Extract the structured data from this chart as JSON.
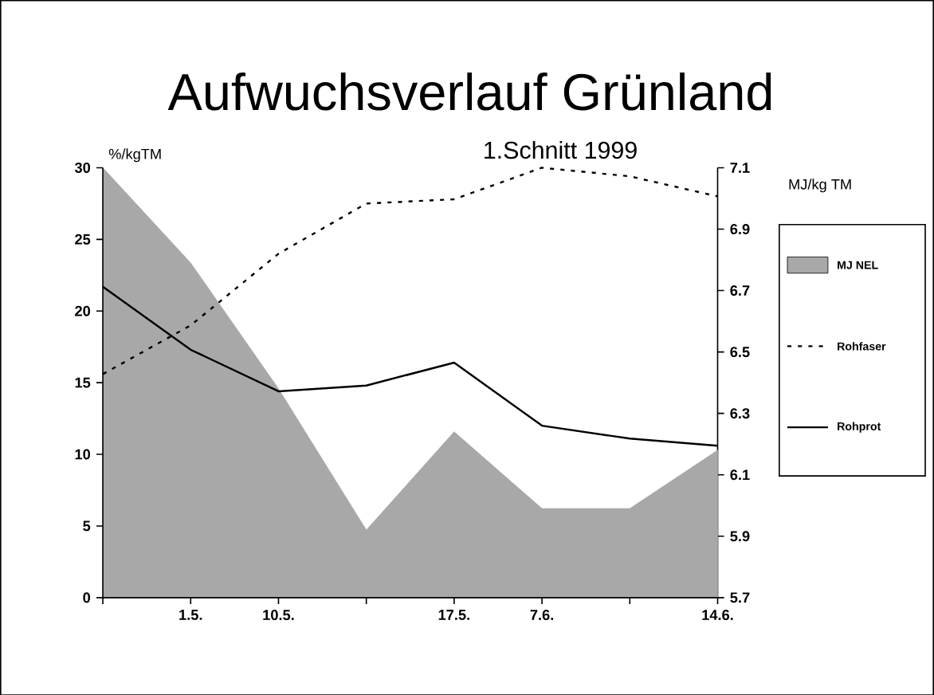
{
  "chart_data": {
    "type": "line",
    "title": "Aufwuchsverlauf Grünland",
    "subtitle": "1.Schnitt 1999",
    "ylabel": "%/kgTM",
    "y2label": "MJ/kg TM",
    "categories": [
      null,
      "1.5.",
      "10.5.",
      null,
      "17.5.",
      "7.6.",
      null,
      "14.6."
    ],
    "series": [
      {
        "name": "MJ NEL",
        "type": "area",
        "axis": "y2",
        "color": "#a8a8a8",
        "values": [
          7.1,
          6.79,
          6.38,
          5.92,
          6.24,
          5.99,
          5.99,
          6.18
        ]
      },
      {
        "name": "Rohfaser",
        "color": "#000000",
        "line_style": "dashed",
        "values": [
          15.6,
          19.0,
          24.0,
          27.5,
          27.8,
          30.0,
          29.4,
          28.0
        ]
      },
      {
        "name": "Rohprot",
        "color": "#000000",
        "line_style": "solid",
        "values": [
          21.7,
          17.3,
          14.4,
          14.8,
          16.4,
          12.0,
          11.1,
          10.6
        ]
      }
    ],
    "ylim": [
      0,
      30
    ],
    "yticks": [
      0,
      5,
      10,
      15,
      20,
      25,
      30
    ],
    "y2lim": [
      5.7,
      7.1
    ],
    "y2ticks": [
      5.7,
      5.9,
      6.1,
      6.3,
      6.5,
      6.7,
      6.9,
      7.1
    ],
    "legend": "right"
  }
}
